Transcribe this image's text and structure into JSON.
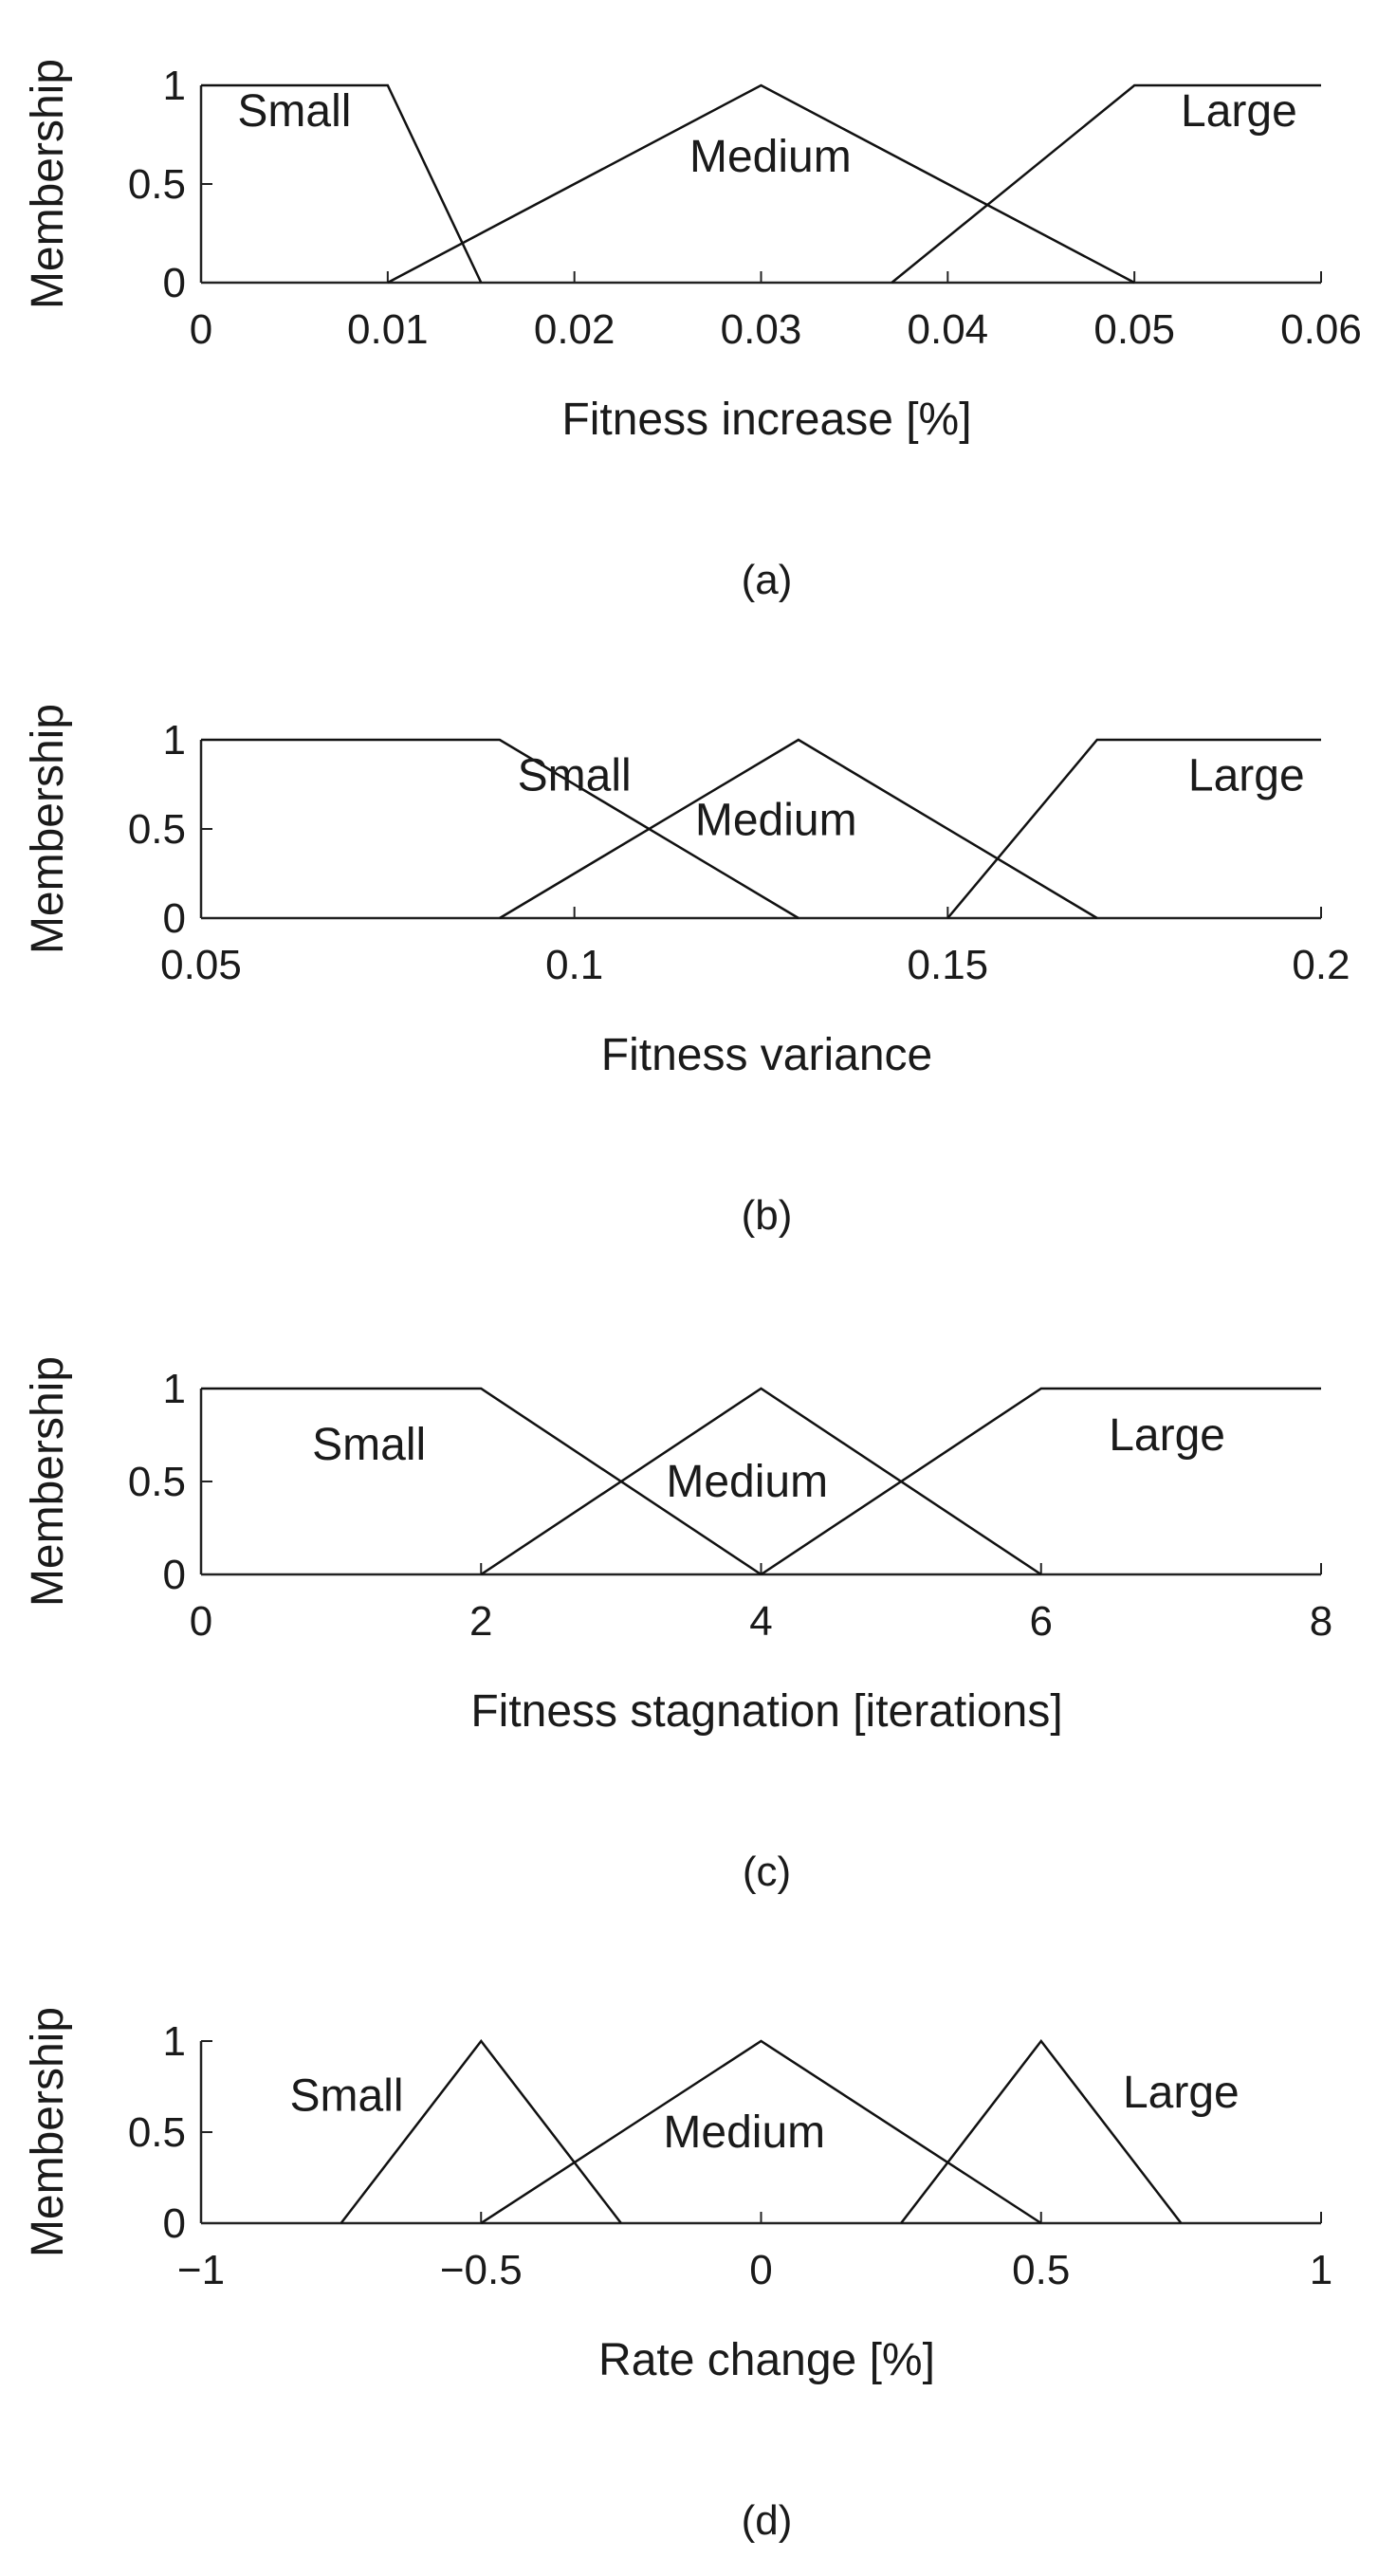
{
  "figure": {
    "y_axis_label": "Membership",
    "panels": [
      "a",
      "b",
      "c",
      "d"
    ]
  },
  "chart_data": [
    {
      "type": "line",
      "caption": "(a)",
      "xlabel": "Fitness increase [%]",
      "ylabel": "Membership",
      "xlim": [
        0,
        0.06
      ],
      "ylim": [
        0,
        1
      ],
      "xticks": [
        0,
        0.01,
        0.02,
        0.03,
        0.04,
        0.05,
        0.06
      ],
      "xtick_labels": [
        "0",
        "0.01",
        "0.02",
        "0.03",
        "0.04",
        "0.05",
        "0.06"
      ],
      "yticks": [
        0,
        0.5,
        1
      ],
      "ytick_labels": [
        "0",
        "0.5",
        "1"
      ],
      "series": [
        {
          "name": "Small",
          "x": [
            0,
            0.01,
            0.015
          ],
          "y": [
            1,
            1,
            0
          ]
        },
        {
          "name": "Medium",
          "x": [
            0.01,
            0.03,
            0.05
          ],
          "y": [
            0,
            1,
            0
          ]
        },
        {
          "name": "Large",
          "x": [
            0.037,
            0.05,
            0.06
          ],
          "y": [
            0,
            1,
            1
          ]
        }
      ],
      "labels": [
        {
          "text": "Small",
          "x": 0.005,
          "y": 0.87
        },
        {
          "text": "Medium",
          "x": 0.0305,
          "y": 0.64
        },
        {
          "text": "Large",
          "x": 0.0556,
          "y": 0.87
        }
      ]
    },
    {
      "type": "line",
      "caption": "(b)",
      "xlabel": "Fitness variance",
      "ylabel": "Membership",
      "xlim": [
        0.05,
        0.2
      ],
      "ylim": [
        0,
        1
      ],
      "xticks": [
        0.05,
        0.1,
        0.15,
        0.2
      ],
      "xtick_labels": [
        "0.05",
        "0.1",
        "0.15",
        "0.2"
      ],
      "yticks": [
        0,
        0.5,
        1
      ],
      "ytick_labels": [
        "0",
        "0.5",
        "1"
      ],
      "series": [
        {
          "name": "Small",
          "x": [
            0.05,
            0.09,
            0.13
          ],
          "y": [
            1,
            1,
            0
          ]
        },
        {
          "name": "Medium",
          "x": [
            0.09,
            0.13,
            0.17
          ],
          "y": [
            0,
            1,
            0
          ]
        },
        {
          "name": "Large",
          "x": [
            0.15,
            0.17,
            0.2
          ],
          "y": [
            0,
            1,
            1
          ]
        }
      ],
      "labels": [
        {
          "text": "Small",
          "x": 0.1,
          "y": 0.8
        },
        {
          "text": "Medium",
          "x": 0.127,
          "y": 0.55
        },
        {
          "text": "Large",
          "x": 0.19,
          "y": 0.8
        }
      ]
    },
    {
      "type": "line",
      "caption": "(c)",
      "xlabel": "Fitness stagnation [iterations]",
      "ylabel": "Membership",
      "xlim": [
        0,
        8
      ],
      "ylim": [
        0,
        1
      ],
      "xticks": [
        0,
        2,
        4,
        6,
        8
      ],
      "xtick_labels": [
        "0",
        "2",
        "4",
        "6",
        "8"
      ],
      "yticks": [
        0,
        0.5,
        1
      ],
      "ytick_labels": [
        "0",
        "0.5",
        "1"
      ],
      "series": [
        {
          "name": "Small",
          "x": [
            0,
            2,
            4
          ],
          "y": [
            1,
            1,
            0
          ]
        },
        {
          "name": "Medium",
          "x": [
            2,
            4,
            6
          ],
          "y": [
            0,
            1,
            0
          ]
        },
        {
          "name": "Large",
          "x": [
            4,
            6,
            8
          ],
          "y": [
            0,
            1,
            1
          ]
        }
      ],
      "labels": [
        {
          "text": "Small",
          "x": 1.2,
          "y": 0.7
        },
        {
          "text": "Medium",
          "x": 3.9,
          "y": 0.5
        },
        {
          "text": "Large",
          "x": 6.9,
          "y": 0.75
        }
      ]
    },
    {
      "type": "line",
      "caption": "(d)",
      "xlabel": "Rate change [%]",
      "ylabel": "Membership",
      "xlim": [
        -1,
        1
      ],
      "ylim": [
        0,
        1
      ],
      "xticks": [
        -1,
        -0.5,
        0,
        0.5,
        1
      ],
      "xtick_labels": [
        "−1",
        "−0.5",
        "0",
        "0.5",
        "1"
      ],
      "yticks": [
        0,
        0.5,
        1
      ],
      "ytick_labels": [
        "0",
        "0.5",
        "1"
      ],
      "series": [
        {
          "name": "Small",
          "x": [
            -0.75,
            -0.5,
            -0.25
          ],
          "y": [
            0,
            1,
            0
          ]
        },
        {
          "name": "Medium",
          "x": [
            -0.5,
            0,
            0.5
          ],
          "y": [
            0,
            1,
            0
          ]
        },
        {
          "name": "Large",
          "x": [
            0.25,
            0.5,
            0.75
          ],
          "y": [
            0,
            1,
            0
          ]
        }
      ],
      "labels": [
        {
          "text": "Small",
          "x": -0.74,
          "y": 0.7
        },
        {
          "text": "Medium",
          "x": -0.03,
          "y": 0.5
        },
        {
          "text": "Large",
          "x": 0.75,
          "y": 0.72
        }
      ]
    }
  ]
}
